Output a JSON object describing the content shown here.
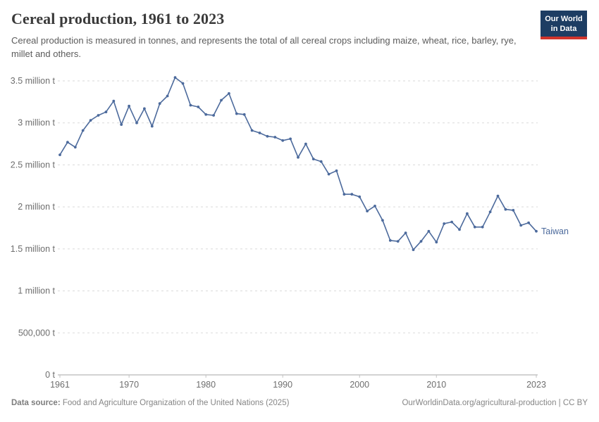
{
  "header": {
    "title": "Cereal production, 1961 to 2023",
    "subtitle": "Cereal production is measured in tonnes, and represents the total of all cereal crops including maize, wheat, rice, barley, rye, millet and others.",
    "logo_line1": "Our World",
    "logo_line2": "in Data"
  },
  "chart_data": {
    "type": "line",
    "title": "Cereal production, 1961 to 2023",
    "unit": "tonnes",
    "xlim": [
      1961,
      2023
    ],
    "ylim": [
      0,
      3500000
    ],
    "grid": "horizontal-dashed",
    "legend_position": "end-of-line-label",
    "xticks": [
      "1961",
      "1970",
      "1980",
      "1990",
      "2000",
      "2010",
      "2023"
    ],
    "xtick_years": [
      1961,
      1970,
      1980,
      1990,
      2000,
      2010,
      2023
    ],
    "yticks": [
      {
        "value": 0,
        "label": "0 t"
      },
      {
        "value": 500000,
        "label": "500,000 t"
      },
      {
        "value": 1000000,
        "label": "1 million t"
      },
      {
        "value": 1500000,
        "label": "1.5 million t"
      },
      {
        "value": 2000000,
        "label": "2 million t"
      },
      {
        "value": 2500000,
        "label": "2.5 million t"
      },
      {
        "value": 3000000,
        "label": "3 million t"
      },
      {
        "value": 3500000,
        "label": "3.5 million t"
      }
    ],
    "x": [
      1961,
      1962,
      1963,
      1964,
      1965,
      1966,
      1967,
      1968,
      1969,
      1970,
      1971,
      1972,
      1973,
      1974,
      1975,
      1976,
      1977,
      1978,
      1979,
      1980,
      1981,
      1982,
      1983,
      1984,
      1985,
      1986,
      1987,
      1988,
      1989,
      1990,
      1991,
      1992,
      1993,
      1994,
      1995,
      1996,
      1997,
      1998,
      1999,
      2000,
      2001,
      2002,
      2003,
      2004,
      2005,
      2006,
      2007,
      2008,
      2009,
      2010,
      2011,
      2012,
      2013,
      2014,
      2015,
      2016,
      2017,
      2018,
      2019,
      2020,
      2021,
      2022,
      2023
    ],
    "series": [
      {
        "name": "Taiwan",
        "color": "#4c6a9c",
        "values": [
          2620000,
          2770000,
          2710000,
          2910000,
          3030000,
          3090000,
          3130000,
          3260000,
          2980000,
          3200000,
          3000000,
          3170000,
          2960000,
          3230000,
          3320000,
          3540000,
          3470000,
          3210000,
          3190000,
          3100000,
          3090000,
          3270000,
          3350000,
          3110000,
          3100000,
          2910000,
          2880000,
          2840000,
          2830000,
          2790000,
          2810000,
          2590000,
          2750000,
          2570000,
          2540000,
          2390000,
          2430000,
          2150000,
          2150000,
          2120000,
          1950000,
          2010000,
          1840000,
          1600000,
          1590000,
          1690000,
          1490000,
          1590000,
          1710000,
          1580000,
          1800000,
          1820000,
          1730000,
          1920000,
          1760000,
          1760000,
          1940000,
          2130000,
          1970000,
          1960000,
          1780000,
          1810000,
          1710000
        ]
      }
    ],
    "colors": {
      "line": "#4c6a9c",
      "gridline": "#dadada",
      "axis": "#a5a5a5",
      "tick": "#c2c2c2",
      "axis_label": "#6e6e6e"
    }
  },
  "footer": {
    "source_label": "Data source:",
    "source_text": " Food and Agriculture Organization of the United Nations (2025)",
    "link_text": "OurWorldinData.org/agricultural-production | CC BY"
  }
}
